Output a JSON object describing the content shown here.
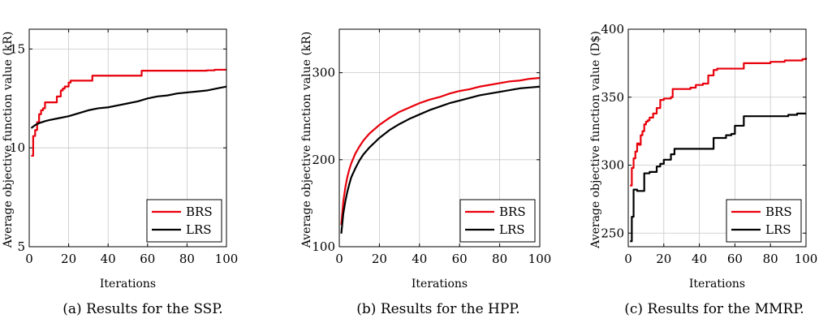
{
  "chart_data": [
    {
      "type": "line",
      "caption": "(a) Results for the SSP.",
      "xlabel": "Iterations",
      "ylabel": "Average objective function value (kR)",
      "xlim": [
        0,
        100
      ],
      "ylim": [
        5,
        16
      ],
      "xticks": [
        0,
        20,
        40,
        60,
        80,
        100
      ],
      "yticks": [
        5,
        10,
        15
      ],
      "grid": true,
      "legend_position": "bottom-right",
      "series": [
        {
          "name": "BRS",
          "color": "#e8000b",
          "step": true,
          "x": [
            1,
            2,
            3,
            4,
            5,
            6,
            7,
            8,
            10,
            12,
            14,
            16,
            17,
            18,
            20,
            21,
            22,
            24,
            30,
            32,
            40,
            50,
            56,
            57,
            60,
            70,
            80,
            90,
            94,
            100
          ],
          "y": [
            9.6,
            10.6,
            10.9,
            11.3,
            11.7,
            11.9,
            12.0,
            12.3,
            12.3,
            12.3,
            12.6,
            12.9,
            13.0,
            13.1,
            13.3,
            13.4,
            13.4,
            13.4,
            13.4,
            13.65,
            13.65,
            13.65,
            13.65,
            13.9,
            13.9,
            13.9,
            13.9,
            13.92,
            13.95,
            13.95
          ]
        },
        {
          "name": "LRS",
          "color": "#000000",
          "step": false,
          "x": [
            1,
            3,
            5,
            8,
            10,
            15,
            20,
            25,
            30,
            35,
            40,
            45,
            50,
            55,
            60,
            65,
            70,
            75,
            80,
            85,
            90,
            95,
            100
          ],
          "y": [
            11.0,
            11.15,
            11.25,
            11.35,
            11.4,
            11.5,
            11.6,
            11.75,
            11.9,
            12.0,
            12.05,
            12.15,
            12.25,
            12.35,
            12.5,
            12.6,
            12.65,
            12.75,
            12.8,
            12.85,
            12.9,
            13.0,
            13.1
          ]
        }
      ]
    },
    {
      "type": "line",
      "caption": "(b) Results for the HPP.",
      "xlabel": "Iterations",
      "ylabel": "Average objective function value (kR)",
      "xlim": [
        0,
        100
      ],
      "ylim": [
        100,
        350
      ],
      "xticks": [
        0,
        20,
        40,
        60,
        80,
        100
      ],
      "yticks": [
        100,
        200,
        300
      ],
      "grid": true,
      "legend_position": "bottom-right",
      "series": [
        {
          "name": "BRS",
          "color": "#e8000b",
          "step": false,
          "x": [
            1,
            2,
            3,
            4,
            5,
            6,
            8,
            10,
            12,
            15,
            20,
            25,
            30,
            35,
            40,
            45,
            50,
            55,
            60,
            65,
            70,
            75,
            80,
            85,
            90,
            95,
            100
          ],
          "y": [
            125,
            152,
            168,
            180,
            189,
            196,
            207,
            215,
            222,
            230,
            240,
            248,
            255,
            260,
            265,
            269,
            272,
            276,
            279,
            281,
            284,
            286,
            288,
            290,
            291,
            293,
            294
          ]
        },
        {
          "name": "LRS",
          "color": "#000000",
          "step": false,
          "x": [
            1,
            2,
            3,
            4,
            5,
            6,
            8,
            10,
            12,
            15,
            20,
            25,
            30,
            35,
            40,
            45,
            50,
            55,
            60,
            65,
            70,
            75,
            80,
            85,
            90,
            95,
            100
          ],
          "y": [
            115,
            138,
            152,
            163,
            172,
            180,
            190,
            199,
            206,
            214,
            225,
            234,
            241,
            247,
            252,
            257,
            261,
            265,
            268,
            271,
            274,
            276,
            278,
            280,
            282,
            283,
            284
          ]
        }
      ]
    },
    {
      "type": "line",
      "caption": "(c) Results for the MMRP.",
      "xlabel": "Iterations",
      "ylabel": "Average objective function value (D$)",
      "xlim": [
        0,
        100
      ],
      "ylim": [
        240,
        400
      ],
      "xticks": [
        0,
        20,
        40,
        60,
        80,
        100
      ],
      "yticks": [
        250,
        300,
        350,
        400
      ],
      "grid": true,
      "legend_position": "bottom-right",
      "series": [
        {
          "name": "BRS",
          "color": "#e8000b",
          "step": true,
          "x": [
            1,
            2,
            3,
            4,
            5,
            6,
            7,
            8,
            9,
            10,
            11,
            12,
            14,
            16,
            18,
            19,
            20,
            22,
            24,
            25,
            30,
            35,
            38,
            40,
            42,
            45,
            48,
            50,
            60,
            65,
            70,
            80,
            88,
            98,
            100
          ],
          "y": [
            285,
            298,
            305,
            310,
            316,
            315,
            322,
            325,
            330,
            332,
            333,
            335,
            338,
            342,
            348,
            348,
            349,
            349,
            350,
            356,
            356,
            357,
            359,
            359,
            360,
            366,
            370,
            371,
            371,
            375,
            375,
            376,
            377,
            378,
            379
          ]
        },
        {
          "name": "LRS",
          "color": "#000000",
          "step": true,
          "x": [
            1,
            2,
            3,
            5,
            8,
            9,
            12,
            15,
            16,
            18,
            20,
            22,
            24,
            26,
            30,
            35,
            40,
            45,
            48,
            55,
            58,
            60,
            65,
            70,
            90,
            95,
            100
          ],
          "y": [
            244,
            262,
            282,
            281,
            281,
            294,
            295,
            295,
            299,
            301,
            304,
            304,
            308,
            312,
            312,
            312,
            312,
            312,
            320,
            322,
            323,
            329,
            336,
            336,
            337,
            338,
            338
          ]
        }
      ]
    }
  ]
}
